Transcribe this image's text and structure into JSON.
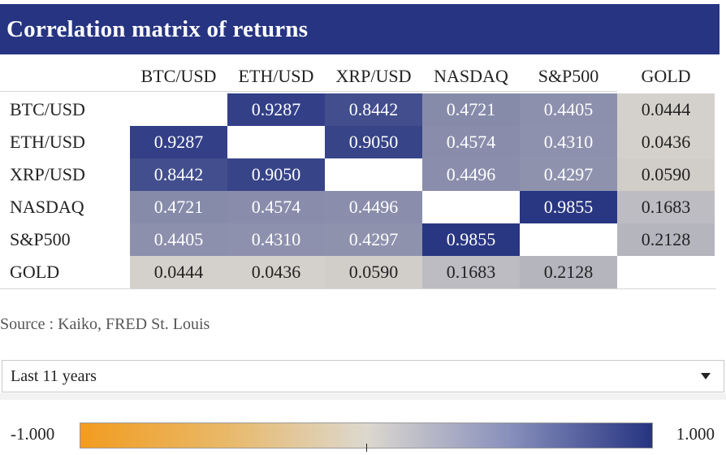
{
  "header": {
    "title": "Correlation matrix of returns"
  },
  "chart_data": {
    "type": "heatmap",
    "title": "Correlation matrix of returns",
    "columns": [
      "BTC/USD",
      "ETH/USD",
      "XRP/USD",
      "NASDAQ",
      "S&P500",
      "GOLD"
    ],
    "rows": [
      "BTC/USD",
      "ETH/USD",
      "XRP/USD",
      "NASDAQ",
      "S&P500",
      "GOLD"
    ],
    "values": [
      [
        null,
        0.9287,
        0.8442,
        0.4721,
        0.4405,
        0.0444
      ],
      [
        0.9287,
        null,
        0.905,
        0.4574,
        0.431,
        0.0436
      ],
      [
        0.8442,
        0.905,
        null,
        0.4496,
        0.4297,
        0.059
      ],
      [
        0.4721,
        0.4574,
        0.4496,
        null,
        0.9855,
        0.1683
      ],
      [
        0.4405,
        0.431,
        0.4297,
        0.9855,
        null,
        0.2128
      ],
      [
        0.0444,
        0.0436,
        0.059,
        0.1683,
        0.2128,
        null
      ]
    ],
    "labels": [
      [
        "",
        "0.9287",
        "0.8442",
        "0.4721",
        "0.4405",
        "0.0444"
      ],
      [
        "0.9287",
        "",
        "0.9050",
        "0.4574",
        "0.4310",
        "0.0436"
      ],
      [
        "0.8442",
        "0.9050",
        "",
        "0.4496",
        "0.4297",
        "0.0590"
      ],
      [
        "0.4721",
        "0.4574",
        "0.4496",
        "",
        "0.9855",
        "0.1683"
      ],
      [
        "0.4405",
        "0.4310",
        "0.4297",
        "0.9855",
        "",
        "0.2128"
      ],
      [
        "0.0444",
        "0.0436",
        "0.0590",
        "0.1683",
        "0.2128",
        ""
      ]
    ],
    "color_scale": {
      "min": -1.0,
      "max": 1.0,
      "min_label": "-1.000",
      "max_label": "1.000",
      "colors": [
        "#f29c20",
        "#dcd8cf",
        "#263481"
      ]
    }
  },
  "source": "Source : Kaiko, FRED St. Louis",
  "period_select": {
    "value": "Last 11 years"
  }
}
